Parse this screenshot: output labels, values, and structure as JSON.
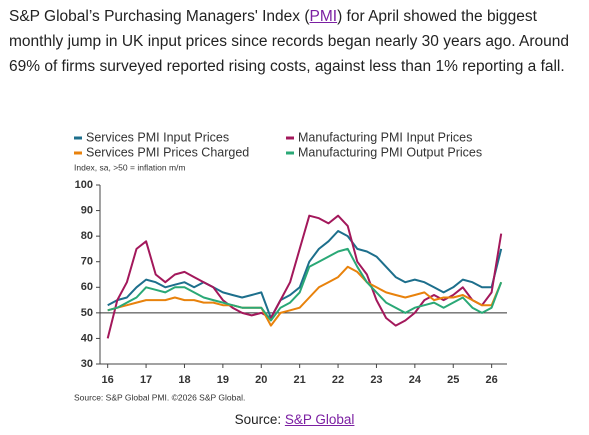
{
  "article": {
    "text_before": "S&P Global’s Purchasing Managers' Index (",
    "link": "PMI",
    "text_after": ") for April showed the biggest monthly jump in UK input prices since records began nearly 30 years ago. Around 69% of firms surveyed reported rising costs, against less than 1% reporting a fall."
  },
  "chart_data": {
    "type": "line",
    "subtitle": "Index, sa, >50 = inflation m/m",
    "source_note": "Source: S&P Global PMI. ©2026 S&P Global.",
    "x": [
      16,
      16.25,
      16.5,
      16.75,
      17,
      17.25,
      17.5,
      17.75,
      18,
      18.25,
      18.5,
      18.75,
      19,
      19.25,
      19.5,
      19.75,
      20,
      20.25,
      20.5,
      20.75,
      21,
      21.25,
      21.5,
      21.75,
      22,
      22.25,
      22.5,
      22.75,
      23,
      23.25,
      23.5,
      23.75,
      24,
      24.25,
      24.5,
      24.75,
      25,
      25.25,
      25.5,
      25.75,
      26,
      26.25
    ],
    "xlim": [
      15.8,
      26.4
    ],
    "xticks": [
      16,
      17,
      18,
      19,
      20,
      21,
      22,
      23,
      24,
      25,
      26
    ],
    "ylim": [
      30,
      100
    ],
    "yticks": [
      30,
      40,
      50,
      60,
      70,
      80,
      90,
      100
    ],
    "hline": 50,
    "series": [
      {
        "name": "Services PMI Input Prices",
        "color": "#1d6f8c",
        "values": [
          53,
          55,
          56,
          60,
          63,
          62,
          60,
          61,
          62,
          60,
          62,
          60,
          58,
          57,
          56,
          57,
          58,
          48,
          55,
          57,
          60,
          70,
          75,
          78,
          82,
          80,
          75,
          74,
          72,
          68,
          64,
          62,
          63,
          62,
          60,
          58,
          60,
          63,
          62,
          60,
          60,
          75
        ]
      },
      {
        "name": "Manufacturing PMI Input Prices",
        "color": "#a3185b",
        "values": [
          40,
          55,
          62,
          75,
          78,
          65,
          62,
          65,
          66,
          64,
          62,
          60,
          55,
          52,
          50,
          49,
          50,
          48,
          55,
          62,
          75,
          88,
          87,
          85,
          88,
          84,
          70,
          65,
          55,
          48,
          45,
          47,
          50,
          55,
          57,
          55,
          57,
          60,
          55,
          53,
          58,
          81
        ]
      },
      {
        "name": "Services PMI Prices Charged",
        "color": "#e8820c",
        "values": [
          51,
          52,
          53,
          54,
          55,
          55,
          55,
          56,
          55,
          55,
          54,
          54,
          53,
          53,
          52,
          52,
          52,
          45,
          50,
          51,
          52,
          56,
          60,
          62,
          64,
          68,
          66,
          62,
          60,
          58,
          57,
          56,
          57,
          58,
          55,
          56,
          56,
          57,
          55,
          53,
          53,
          62
        ]
      },
      {
        "name": "Manufacturing PMI Output Prices",
        "color": "#2aa876",
        "values": [
          51,
          52,
          54,
          56,
          60,
          59,
          58,
          60,
          60,
          58,
          56,
          55,
          54,
          53,
          52,
          52,
          52,
          47,
          52,
          54,
          58,
          68,
          70,
          72,
          74,
          75,
          68,
          62,
          58,
          54,
          52,
          50,
          52,
          53,
          54,
          52,
          54,
          56,
          52,
          50,
          52,
          62
        ]
      }
    ]
  },
  "source": {
    "label": "Source:",
    "link": "S&P Global"
  }
}
